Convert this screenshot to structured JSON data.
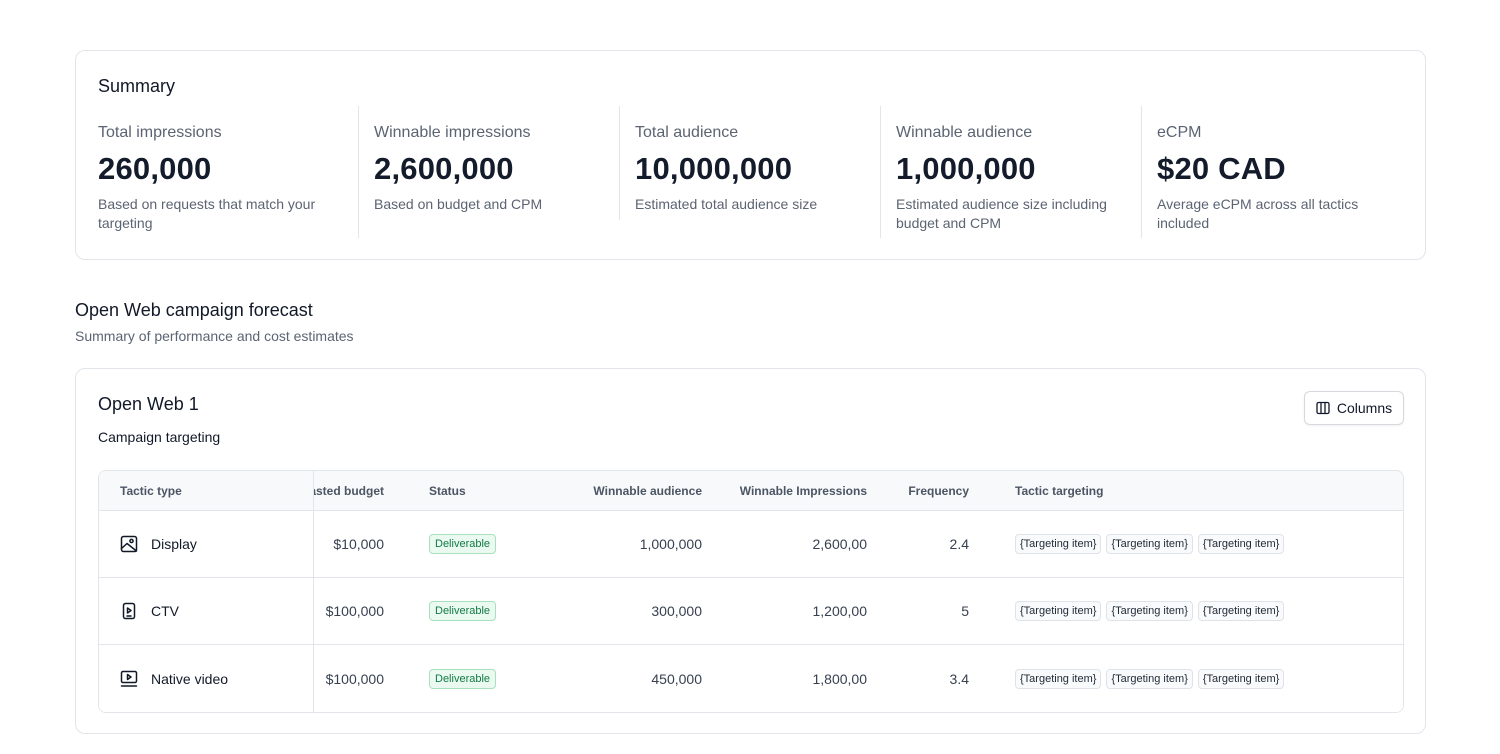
{
  "summary": {
    "title": "Summary",
    "metrics": [
      {
        "label": "Total impressions",
        "value": "260,000",
        "description": "Based on requests that match your targeting"
      },
      {
        "label": "Winnable impressions",
        "value": "2,600,000",
        "description": "Based on budget and CPM"
      },
      {
        "label": "Total audience",
        "value": "10,000,000",
        "description": "Estimated total audience size"
      },
      {
        "label": "Winnable audience",
        "value": "1,000,000",
        "description": "Estimated audience size including budget and CPM"
      },
      {
        "label": "eCPM",
        "value": "$20 CAD",
        "description": "Average eCPM across all tactics included"
      }
    ]
  },
  "forecast": {
    "title": "Open Web campaign forecast",
    "subtitle": "Summary of performance and cost estimates"
  },
  "campaign": {
    "title": "Open Web 1",
    "subtitle": "Campaign targeting",
    "columns_button": {
      "label": "Columns",
      "icon": "columns-icon"
    },
    "table": {
      "headers": {
        "tactic_type": "Tactic type",
        "budget": "asted budget",
        "status": "Status",
        "winnable_audience": "Winnable audience",
        "winnable_impressions": "Winnable Impressions",
        "frequency": "Frequency",
        "tactic_targeting": "Tactic targeting"
      },
      "rows": [
        {
          "tactic": "Display",
          "icon": "image-icon",
          "budget": "$10,000",
          "status": "Deliverable",
          "winnable_audience": "1,000,000",
          "winnable_impressions": "2,600,00",
          "frequency": "2.4",
          "targeting": [
            "{Targeting item}",
            "{Targeting item}",
            "{Targeting item}"
          ]
        },
        {
          "tactic": "CTV",
          "icon": "ctv-icon",
          "budget": "$100,000",
          "status": "Deliverable",
          "winnable_audience": "300,000",
          "winnable_impressions": "1,200,00",
          "frequency": "5",
          "targeting": [
            "{Targeting item}",
            "{Targeting item}",
            "{Targeting item}"
          ]
        },
        {
          "tactic": "Native video",
          "icon": "video-icon",
          "budget": "$100,000",
          "status": "Deliverable",
          "winnable_audience": "450,000",
          "winnable_impressions": "1,800,00",
          "frequency": "3.4",
          "targeting": [
            "{Targeting item}",
            "{Targeting item}",
            "{Targeting item}"
          ]
        }
      ]
    }
  },
  "colors": {
    "badge_text": "#127a45",
    "badge_bg": "#eafaf0",
    "border": "#e2e5e9",
    "muted_text": "#5b6472"
  }
}
